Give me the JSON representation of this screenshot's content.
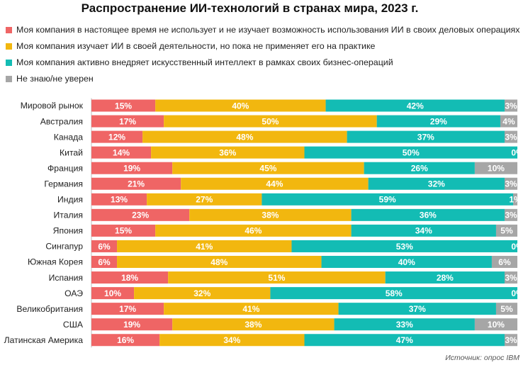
{
  "chart_data": {
    "type": "bar",
    "orientation": "horizontal",
    "stacked": true,
    "percent_stacked": true,
    "title": "Распространение  ИИ-технологий в странах мира, 2023  г.",
    "categories": [
      "Мировой рынок",
      "Австралия",
      "Канада",
      "Китай",
      "Франция",
      "Германия",
      "Индия",
      "Италия",
      "Япония",
      "Сингапур",
      "Южная Корея",
      "Испания",
      "ОАЭ",
      "Великобритания",
      "США",
      "Латинская Америка"
    ],
    "series": [
      {
        "name": "Моя компания  в настоящее время не использует и не изучает возможность использования ИИ в своих деловых операциях",
        "color": "#ef6565",
        "values": [
          15,
          17,
          12,
          14,
          19,
          21,
          13,
          23,
          15,
          6,
          6,
          18,
          10,
          17,
          19,
          16
        ]
      },
      {
        "name": "Моя компания изучает ИИ в своей деятельности, но пока не применяет его на практике",
        "color": "#f2b70f",
        "values": [
          40,
          50,
          48,
          36,
          45,
          44,
          27,
          38,
          46,
          41,
          48,
          51,
          32,
          41,
          38,
          34
        ]
      },
      {
        "name": "Моя компания активно внедряет искусственный интеллект в рамках своих бизнес-операций",
        "color": "#13bcb4",
        "values": [
          42,
          29,
          37,
          50,
          26,
          32,
          59,
          36,
          34,
          53,
          40,
          28,
          58,
          37,
          33,
          47
        ]
      },
      {
        "name": "Не знаю/не уверен",
        "color": "#a6a6a6",
        "values": [
          3,
          4,
          3,
          0,
          10,
          3,
          1,
          3,
          5,
          0,
          6,
          3,
          0,
          5,
          10,
          3
        ]
      }
    ],
    "value_suffix": "%",
    "xlim": [
      0,
      100
    ]
  },
  "source": "Источник: опрос IBM"
}
